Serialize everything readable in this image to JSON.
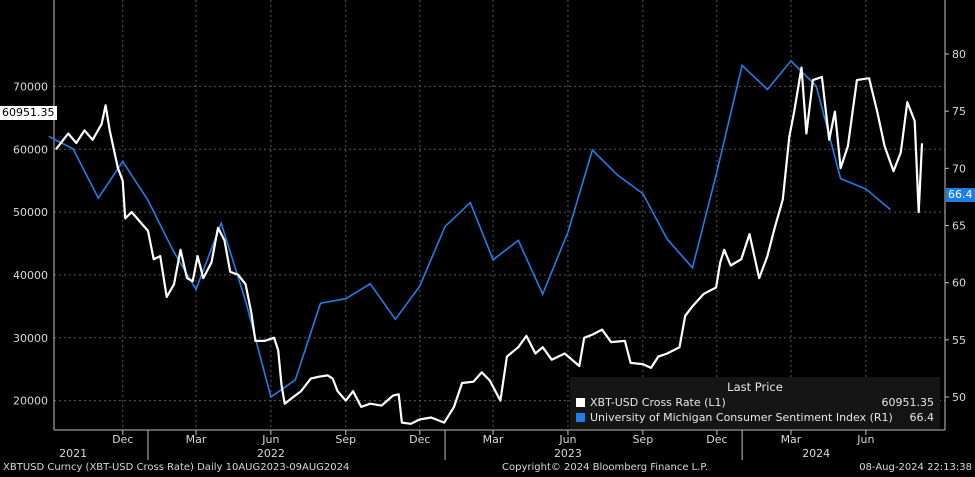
{
  "chart_data": {
    "type": "line",
    "left_axis": {
      "ticks": [
        20000,
        30000,
        40000,
        50000,
        60000,
        70000
      ],
      "tick_labels": [
        "20000",
        "30000",
        "40000",
        "50000",
        "60000",
        "70000"
      ]
    },
    "right_axis": {
      "ticks": [
        50,
        55,
        60,
        65,
        70,
        75,
        80
      ],
      "tick_labels": [
        "50",
        "55",
        "60",
        "65",
        "70",
        "75",
        "80"
      ]
    },
    "x_axis": {
      "ticks": [
        "2021-12-01",
        "2022-03-01",
        "2022-06-01",
        "2022-09-01",
        "2022-12-01",
        "2023-03-01",
        "2023-06-01",
        "2023-09-01",
        "2023-12-01",
        "2024-03-01",
        "2024-06-01"
      ],
      "tick_labels": [
        "Dec",
        "Mar",
        "Jun",
        "Sep",
        "Dec",
        "Mar",
        "Jun",
        "Sep",
        "Dec",
        "Mar",
        "Jun"
      ],
      "year_labels": [
        {
          "text": "2021",
          "date": "2021-10-01"
        },
        {
          "text": "2022",
          "date": "2022-06-01"
        },
        {
          "text": "2023",
          "date": "2023-06-01"
        },
        {
          "text": "2024",
          "date": "2024-04-01"
        }
      ]
    },
    "series": [
      {
        "name": "XBT-USD Cross Rate",
        "axis": "L1",
        "color": "#ffffff",
        "last_price": "60951.35",
        "points": [
          [
            "2021-09-10",
            60000
          ],
          [
            "2021-09-25",
            62500
          ],
          [
            "2021-10-05",
            61000
          ],
          [
            "2021-10-15",
            63000
          ],
          [
            "2021-10-25",
            61500
          ],
          [
            "2021-11-05",
            64000
          ],
          [
            "2021-11-10",
            67000
          ],
          [
            "2021-11-15",
            63000
          ],
          [
            "2021-11-25",
            57000
          ],
          [
            "2021-12-01",
            55000
          ],
          [
            "2021-12-04",
            49000
          ],
          [
            "2021-12-12",
            50000
          ],
          [
            "2021-12-22",
            48500
          ],
          [
            "2022-01-01",
            47000
          ],
          [
            "2022-01-08",
            42500
          ],
          [
            "2022-01-16",
            43000
          ],
          [
            "2022-01-24",
            36500
          ],
          [
            "2022-02-02",
            38500
          ],
          [
            "2022-02-10",
            44000
          ],
          [
            "2022-02-18",
            39500
          ],
          [
            "2022-02-25",
            39000
          ],
          [
            "2022-03-03",
            43000
          ],
          [
            "2022-03-10",
            39500
          ],
          [
            "2022-03-20",
            42000
          ],
          [
            "2022-03-28",
            47500
          ],
          [
            "2022-04-05",
            45500
          ],
          [
            "2022-04-12",
            40500
          ],
          [
            "2022-04-22",
            40000
          ],
          [
            "2022-05-01",
            38500
          ],
          [
            "2022-05-08",
            34000
          ],
          [
            "2022-05-13",
            29500
          ],
          [
            "2022-05-24",
            29500
          ],
          [
            "2022-06-05",
            30000
          ],
          [
            "2022-06-10",
            28000
          ],
          [
            "2022-06-14",
            22500
          ],
          [
            "2022-06-18",
            19500
          ],
          [
            "2022-06-28",
            20500
          ],
          [
            "2022-07-08",
            21500
          ],
          [
            "2022-07-20",
            23500
          ],
          [
            "2022-07-30",
            23800
          ],
          [
            "2022-08-10",
            24000
          ],
          [
            "2022-08-16",
            23500
          ],
          [
            "2022-08-22",
            21500
          ],
          [
            "2022-09-01",
            20000
          ],
          [
            "2022-09-10",
            21500
          ],
          [
            "2022-09-20",
            19000
          ],
          [
            "2022-10-01",
            19500
          ],
          [
            "2022-10-15",
            19200
          ],
          [
            "2022-10-29",
            20800
          ],
          [
            "2022-11-05",
            21000
          ],
          [
            "2022-11-09",
            16500
          ],
          [
            "2022-11-20",
            16300
          ],
          [
            "2022-12-01",
            17000
          ],
          [
            "2022-12-15",
            17300
          ],
          [
            "2022-12-31",
            16500
          ],
          [
            "2023-01-12",
            19000
          ],
          [
            "2023-01-22",
            22800
          ],
          [
            "2023-02-05",
            23000
          ],
          [
            "2023-02-15",
            24500
          ],
          [
            "2023-02-25",
            23200
          ],
          [
            "2023-03-10",
            20000
          ],
          [
            "2023-03-18",
            27000
          ],
          [
            "2023-04-01",
            28500
          ],
          [
            "2023-04-11",
            30300
          ],
          [
            "2023-04-22",
            27500
          ],
          [
            "2023-05-01",
            28500
          ],
          [
            "2023-05-12",
            26500
          ],
          [
            "2023-05-28",
            27500
          ],
          [
            "2023-06-15",
            25500
          ],
          [
            "2023-06-21",
            30000
          ],
          [
            "2023-07-01",
            30500
          ],
          [
            "2023-07-13",
            31300
          ],
          [
            "2023-07-24",
            29300
          ],
          [
            "2023-08-10",
            29500
          ],
          [
            "2023-08-17",
            26000
          ],
          [
            "2023-09-01",
            25800
          ],
          [
            "2023-09-11",
            25200
          ],
          [
            "2023-09-20",
            27000
          ],
          [
            "2023-10-01",
            27500
          ],
          [
            "2023-10-16",
            28500
          ],
          [
            "2023-10-23",
            33500
          ],
          [
            "2023-11-01",
            35000
          ],
          [
            "2023-11-15",
            37000
          ],
          [
            "2023-11-30",
            38000
          ],
          [
            "2023-12-05",
            42000
          ],
          [
            "2023-12-10",
            44000
          ],
          [
            "2023-12-18",
            41500
          ],
          [
            "2023-12-31",
            42500
          ],
          [
            "2024-01-10",
            46500
          ],
          [
            "2024-01-22",
            39500
          ],
          [
            "2024-02-01",
            43000
          ],
          [
            "2024-02-10",
            47500
          ],
          [
            "2024-02-20",
            52000
          ],
          [
            "2024-02-28",
            62000
          ],
          [
            "2024-03-05",
            66000
          ],
          [
            "2024-03-14",
            73000
          ],
          [
            "2024-03-20",
            62500
          ],
          [
            "2024-03-28",
            71000
          ],
          [
            "2024-04-08",
            71500
          ],
          [
            "2024-04-17",
            61500
          ],
          [
            "2024-04-24",
            66000
          ],
          [
            "2024-05-01",
            57000
          ],
          [
            "2024-05-10",
            60500
          ],
          [
            "2024-05-21",
            71000
          ],
          [
            "2024-06-05",
            71300
          ],
          [
            "2024-06-15",
            66000
          ],
          [
            "2024-06-24",
            60500
          ],
          [
            "2024-07-05",
            56500
          ],
          [
            "2024-07-14",
            59500
          ],
          [
            "2024-07-22",
            67500
          ],
          [
            "2024-07-31",
            64500
          ],
          [
            "2024-08-05",
            50000
          ],
          [
            "2024-08-09",
            60951
          ]
        ]
      },
      {
        "name": "University of Michigan Consumer Sentiment Index",
        "axis": "R1",
        "color": "#1f7fe8",
        "last_price": "66.4",
        "points": [
          [
            "2021-09-01",
            72.8
          ],
          [
            "2021-10-01",
            71.7
          ],
          [
            "2021-11-01",
            67.4
          ],
          [
            "2021-12-01",
            70.6
          ],
          [
            "2022-01-01",
            67.2
          ],
          [
            "2022-02-01",
            62.8
          ],
          [
            "2022-03-01",
            59.4
          ],
          [
            "2022-04-01",
            65.2
          ],
          [
            "2022-05-01",
            58.4
          ],
          [
            "2022-06-01",
            50.0
          ],
          [
            "2022-07-01",
            51.5
          ],
          [
            "2022-08-01",
            58.2
          ],
          [
            "2022-09-01",
            58.6
          ],
          [
            "2022-10-01",
            59.9
          ],
          [
            "2022-11-01",
            56.8
          ],
          [
            "2022-12-01",
            59.7
          ],
          [
            "2023-01-01",
            64.9
          ],
          [
            "2023-02-01",
            67.0
          ],
          [
            "2023-03-01",
            62.0
          ],
          [
            "2023-04-01",
            63.7
          ],
          [
            "2023-05-01",
            59.0
          ],
          [
            "2023-06-01",
            64.4
          ],
          [
            "2023-07-01",
            71.6
          ],
          [
            "2023-08-01",
            69.4
          ],
          [
            "2023-09-01",
            67.8
          ],
          [
            "2023-10-01",
            63.8
          ],
          [
            "2023-11-01",
            61.3
          ],
          [
            "2023-12-01",
            69.7
          ],
          [
            "2024-01-01",
            79.0
          ],
          [
            "2024-02-01",
            76.9
          ],
          [
            "2024-03-01",
            79.4
          ],
          [
            "2024-04-01",
            77.2
          ],
          [
            "2024-05-01",
            69.1
          ],
          [
            "2024-06-01",
            68.2
          ],
          [
            "2024-07-01",
            66.4
          ]
        ]
      }
    ],
    "legend": {
      "placement": "bottom-right",
      "header": "Last Price"
    }
  },
  "legend_labels": {
    "header": "Last Price",
    "s1_name": "XBT-USD Cross Rate  (L1)",
    "s1_value": "60951.35",
    "s2_name": "University of Michigan Consumer Sentiment Index  (R1)",
    "s2_value": "66.4"
  },
  "tags": {
    "left_last": "60951.35",
    "right_last": "66.4"
  },
  "footer": {
    "left": "XBTUSD Curncy (XBT-USD Cross Rate)  Daily 10AUG2023-09AUG2024",
    "center": "Copyright© 2024 Bloomberg Finance L.P.",
    "right": "08-Aug-2024 22:13:38"
  }
}
